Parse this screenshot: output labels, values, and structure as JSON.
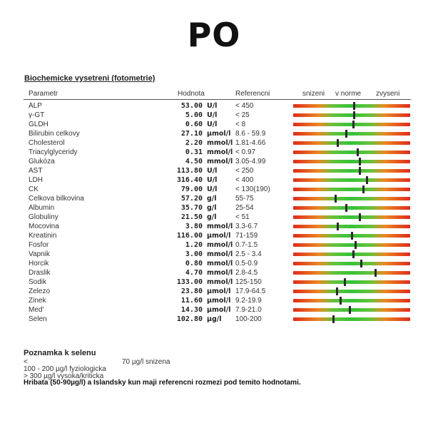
{
  "page_title": "PO",
  "section_title": "Biochemicke vysetreni (fotometrie)",
  "headers": {
    "parametr": "Parametr",
    "hodnota": "Hodnota",
    "referencni": "Referencni",
    "snizeni": "snizeni",
    "v_norme": "v norme",
    "zvyseni": "zvyseni"
  },
  "rows": [
    {
      "name": "ALP",
      "value": "53.00",
      "unit": "U/l",
      "ref": "< 450",
      "level": 0.52
    },
    {
      "name": "γ-GT",
      "value": "5.00",
      "unit": "U/l",
      "ref": "< 25",
      "level": 0.52
    },
    {
      "name": "GLDH",
      "value": "0.60",
      "unit": "U/l",
      "ref": "< 8",
      "level": 0.51
    },
    {
      "name": "Bilirubin celkovy",
      "value": "27.10",
      "unit": "µmol/l",
      "ref": "8.6 - 59.9",
      "level": 0.45
    },
    {
      "name": "Cholesterol",
      "value": "2.20",
      "unit": "mmol/l",
      "ref": "1.81-4.66",
      "level": 0.38
    },
    {
      "name": "Triacylglyceridy",
      "value": "0.31",
      "mmol": "",
      "unit": "mmol/l",
      "ref": "< 0.97",
      "level": 0.55
    },
    {
      "name": "Glukóza",
      "value": "4.50",
      "unit": "mmol/l",
      "ref": "3.05-4.99",
      "level": 0.57
    },
    {
      "name": "AST",
      "value": "113.80",
      "unit": "U/l",
      "ref": "< 250",
      "level": 0.57
    },
    {
      "name": "LDH",
      "value": "316.40",
      "unit": "U/l",
      "ref": "< 400",
      "level": 0.63
    },
    {
      "name": "CK",
      "value": "79.00",
      "unit": "U/l",
      "ref": "< 130(190)",
      "level": 0.6
    },
    {
      "name": "Celkova bilkovina",
      "value": "57.20",
      "unit": "g/l",
      "ref": "55-75",
      "level": 0.36
    },
    {
      "name": "Albumin",
      "value": "35.70",
      "unit": "g/l",
      "ref": "25-54",
      "level": 0.45
    },
    {
      "name": "Globuliny",
      "value": "21.50",
      "unit": "g/l",
      "ref": "< 51",
      "level": 0.57
    },
    {
      "name": "Mocovina",
      "value": "3.80",
      "unit": "mmol/l",
      "ref": "3.3-6.7",
      "level": 0.38
    },
    {
      "name": "Kreatinin",
      "value": "116.00",
      "unit": "µmol/l",
      "ref": "71-159",
      "level": 0.5
    },
    {
      "name": "Fosfor",
      "value": "1.20",
      "unit": "mmol/l",
      "ref": "0.7-1.5",
      "level": 0.53
    },
    {
      "name": "Vapnik",
      "value": "3.00",
      "unit": "mmol/l",
      "ref": "2.5 - 3.4",
      "level": 0.51
    },
    {
      "name": "Horcik",
      "value": "0.80",
      "unit": "mmol/l",
      "ref": "0.5-0.9",
      "level": 0.58
    },
    {
      "name": "Draslik",
      "value": "4.70",
      "unit": "mmol/l",
      "ref": "2.8-4.5",
      "level": 0.7
    },
    {
      "name": "Sodik",
      "value": "133.00",
      "unit": "mmol/l",
      "ref": "125-150",
      "level": 0.44
    },
    {
      "name": "Zelezo",
      "value": "23.80",
      "unit": "µmol/l",
      "ref": "17.9-64.5",
      "level": 0.37
    },
    {
      "name": "Zinek",
      "value": "11.60",
      "unit": "µmol/l",
      "ref": "9.2-19.9",
      "level": 0.4
    },
    {
      "name": "Med'",
      "value": "14.30",
      "unit": "µmol/l",
      "ref": "7.9-21.0",
      "level": 0.48
    },
    {
      "name": "Selen",
      "value": "102.80",
      "unit": "µg/l",
      "ref": "100-200",
      "level": 0.34
    }
  ],
  "note": {
    "title": "Poznamka k selenu",
    "line1_lt": "<",
    "line1_text": "70 µg/l snizena",
    "line2": "100 - 200 µg/l fyziologicka",
    "line3": "> 300 µg/l vysoka/kriticka",
    "line4": "Hribata (50-90µg/l) a Islandsky kun maji referencni rozmezi pod temito hodnotami."
  },
  "colors": {
    "low": "#e02a1c",
    "normal": "#35c23a",
    "high": "#e02a1c",
    "marker": "#2b2b2b"
  }
}
